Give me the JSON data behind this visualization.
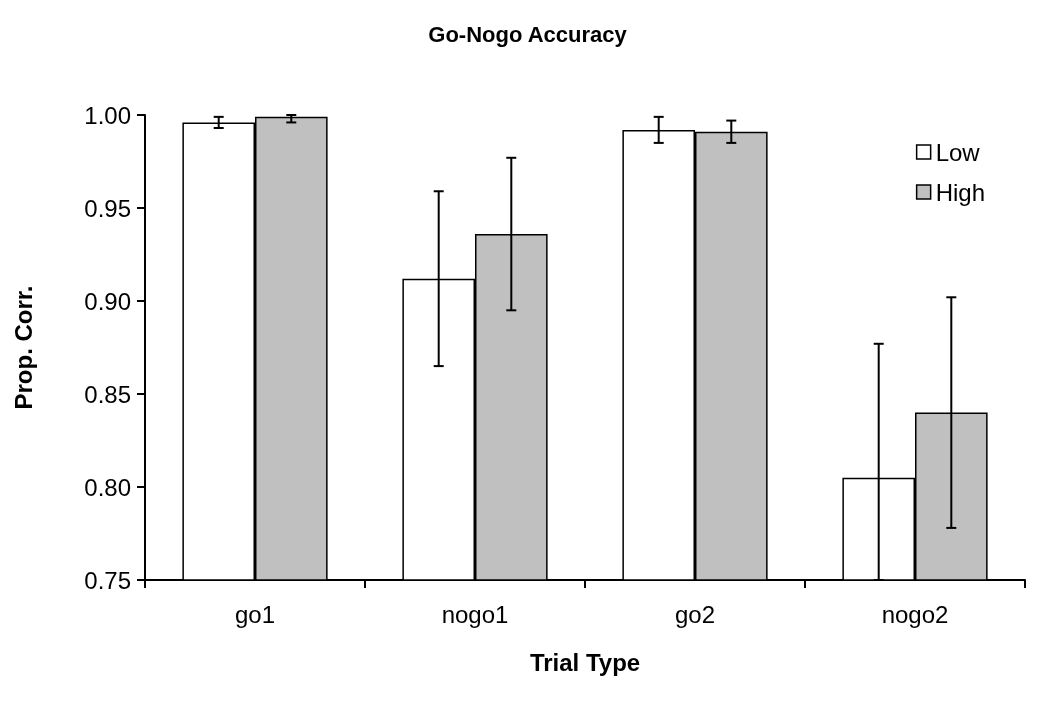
{
  "chart_data": {
    "type": "bar",
    "title": "Go-Nogo Accuracy",
    "xlabel": "Trial Type",
    "ylabel": "Prop. Corr.",
    "categories": [
      "go1",
      "nogo1",
      "go2",
      "nogo2"
    ],
    "series": [
      {
        "name": "Low",
        "color": "#ffffff",
        "values": [
          0.996,
          0.912,
          0.992,
          0.805
        ],
        "errors": [
          0.003,
          0.047,
          0.007,
          [
            0.75,
            0.877
          ]
        ]
      },
      {
        "name": "High",
        "color": "#c0c0c0",
        "values": [
          0.999,
          0.936,
          0.991,
          0.84
        ],
        "errors": [
          [
            0.996,
            1.0
          ],
          0.041,
          0.006,
          0.062
        ]
      }
    ],
    "ylim": [
      0.75,
      1.0
    ],
    "yticks": [
      {
        "value": 0.75,
        "label": "0.75"
      },
      {
        "value": 0.8,
        "label": "0.80"
      },
      {
        "value": 0.85,
        "label": "0.85"
      },
      {
        "value": 0.9,
        "label": "0.90"
      },
      {
        "value": 0.95,
        "label": "0.95"
      },
      {
        "value": 1.0,
        "label": "1.00"
      }
    ],
    "grid": false,
    "legend": "top right"
  }
}
